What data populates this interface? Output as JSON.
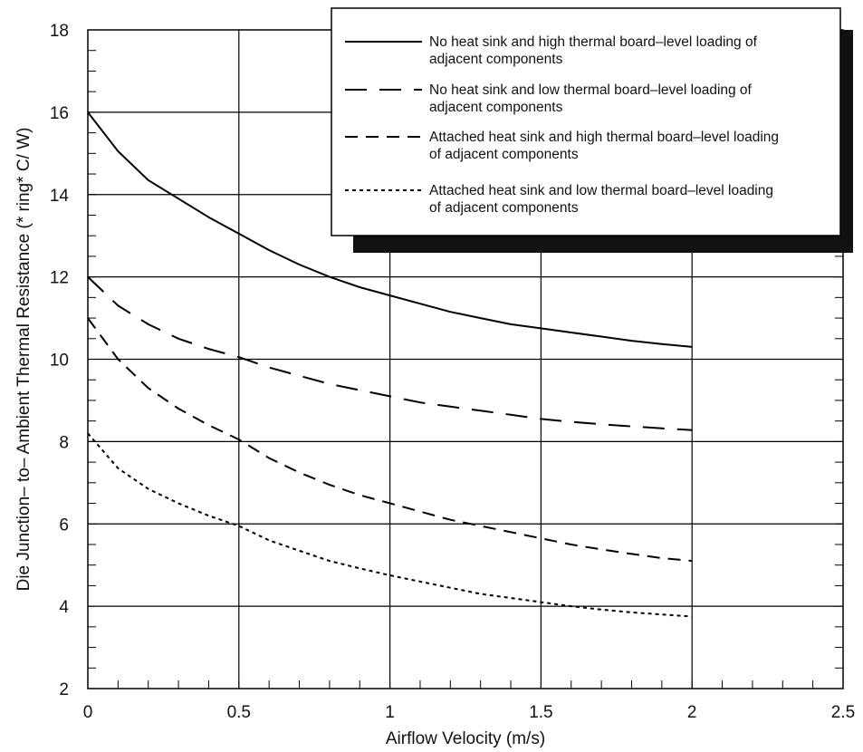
{
  "chart_data": {
    "type": "line",
    "title": "",
    "xlabel": "Airflow Velocity (m/s)",
    "ylabel": "Die Junction– to– Ambient Thermal Resistance (* ring* C/ W)",
    "xlim": [
      0,
      2.5
    ],
    "ylim": [
      2,
      18
    ],
    "x_ticks": [
      "0",
      "0.5",
      "1",
      "1.5",
      "2",
      "2.5"
    ],
    "y_ticks": [
      "2",
      "4",
      "6",
      "8",
      "10",
      "12",
      "14",
      "16",
      "18"
    ],
    "grid": true,
    "legend_position": "top-right",
    "series": [
      {
        "name": "No heat sink and high thermal board–level loading of adjacent components",
        "line_style": "solid",
        "legend_lines": [
          "No heat sink and high thermal board–level loading of",
          "adjacent components"
        ],
        "x": [
          0,
          0.1,
          0.2,
          0.3,
          0.4,
          0.5,
          0.6,
          0.7,
          0.8,
          0.9,
          1.0,
          1.1,
          1.2,
          1.3,
          1.4,
          1.5,
          1.6,
          1.7,
          1.8,
          1.9,
          2.0
        ],
        "y": [
          16.0,
          15.05,
          14.35,
          13.9,
          13.45,
          13.05,
          12.65,
          12.3,
          12.0,
          11.75,
          11.55,
          11.35,
          11.15,
          11.0,
          10.85,
          10.75,
          10.65,
          10.55,
          10.45,
          10.37,
          10.3
        ]
      },
      {
        "name": "No heat sink and low thermal board–level loading of adjacent components",
        "line_style": "long-dash",
        "legend_lines": [
          "No heat sink and low thermal board–level loading of",
          "adjacent components"
        ],
        "x": [
          0,
          0.1,
          0.2,
          0.3,
          0.4,
          0.5,
          0.6,
          0.7,
          0.8,
          0.9,
          1.0,
          1.1,
          1.2,
          1.3,
          1.4,
          1.5,
          1.6,
          1.7,
          1.8,
          1.9,
          2.0
        ],
        "y": [
          12.0,
          11.3,
          10.85,
          10.5,
          10.25,
          10.05,
          9.8,
          9.6,
          9.4,
          9.25,
          9.1,
          8.95,
          8.85,
          8.75,
          8.65,
          8.55,
          8.48,
          8.42,
          8.37,
          8.32,
          8.28
        ]
      },
      {
        "name": "Attached heat sink and high thermal board–level loading of adjacent components",
        "line_style": "dash",
        "legend_lines": [
          "Attached heat sink and high thermal board–level loading",
          "of adjacent components"
        ],
        "x": [
          0,
          0.1,
          0.2,
          0.3,
          0.4,
          0.5,
          0.6,
          0.7,
          0.8,
          0.9,
          1.0,
          1.1,
          1.2,
          1.3,
          1.4,
          1.5,
          1.6,
          1.7,
          1.8,
          1.9,
          2.0
        ],
        "y": [
          11.0,
          10.0,
          9.3,
          8.8,
          8.4,
          8.05,
          7.6,
          7.25,
          6.95,
          6.7,
          6.5,
          6.3,
          6.1,
          5.95,
          5.8,
          5.65,
          5.5,
          5.38,
          5.27,
          5.17,
          5.1
        ]
      },
      {
        "name": "Attached heat sink and low thermal board–level loading of adjacent components",
        "line_style": "dotted",
        "legend_lines": [
          "Attached heat sink and low thermal board–level loading",
          "of adjacent components"
        ],
        "x": [
          0,
          0.1,
          0.2,
          0.3,
          0.4,
          0.5,
          0.6,
          0.7,
          0.8,
          0.9,
          1.0,
          1.1,
          1.2,
          1.3,
          1.4,
          1.5,
          1.6,
          1.7,
          1.8,
          1.9,
          2.0
        ],
        "y": [
          8.2,
          7.35,
          6.85,
          6.5,
          6.2,
          5.95,
          5.6,
          5.35,
          5.1,
          4.92,
          4.75,
          4.6,
          4.45,
          4.3,
          4.2,
          4.1,
          4.0,
          3.92,
          3.85,
          3.8,
          3.75
        ]
      }
    ]
  }
}
